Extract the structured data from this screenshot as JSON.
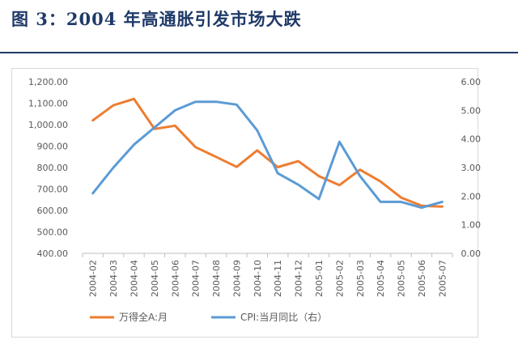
{
  "figure": {
    "title": "图 3：2004 年高通胀引发市场大跌"
  },
  "chart_data": {
    "type": "line",
    "title": "",
    "categories": [
      "2004-02",
      "2004-03",
      "2004-04",
      "2004-05",
      "2004-06",
      "2004-07",
      "2004-08",
      "2004-09",
      "2004-10",
      "2004-11",
      "2004-12",
      "2005-01",
      "2005-02",
      "2005-03",
      "2005-04",
      "2005-05",
      "2005-06",
      "2005-07"
    ],
    "series": [
      {
        "name": "万得全A:月",
        "axis": "left",
        "color": "#ed7d31",
        "values": [
          1020,
          1090,
          1120,
          980,
          995,
          895,
          850,
          803,
          880,
          802,
          830,
          760,
          718,
          790,
          735,
          660,
          622,
          618
        ]
      },
      {
        "name": "CPI:当月同比（右）",
        "axis": "right",
        "color": "#5b9bd5",
        "values": [
          2.1,
          3.0,
          3.8,
          4.4,
          5.0,
          5.3,
          5.3,
          5.2,
          4.3,
          2.8,
          2.4,
          1.9,
          3.9,
          2.7,
          1.8,
          1.8,
          1.6,
          1.8
        ]
      }
    ],
    "y_left": {
      "ylim": [
        400,
        1200
      ],
      "ticks": [
        "400.00",
        "500.00",
        "600.00",
        "700.00",
        "800.00",
        "900.00",
        "1,000.00",
        "1,100.00",
        "1,200.00"
      ]
    },
    "y_right": {
      "ylim": [
        0,
        6
      ],
      "ticks": [
        "0.00",
        "1.00",
        "2.00",
        "3.00",
        "4.00",
        "5.00",
        "6.00"
      ]
    },
    "grid": false,
    "legend_position": "bottom"
  }
}
